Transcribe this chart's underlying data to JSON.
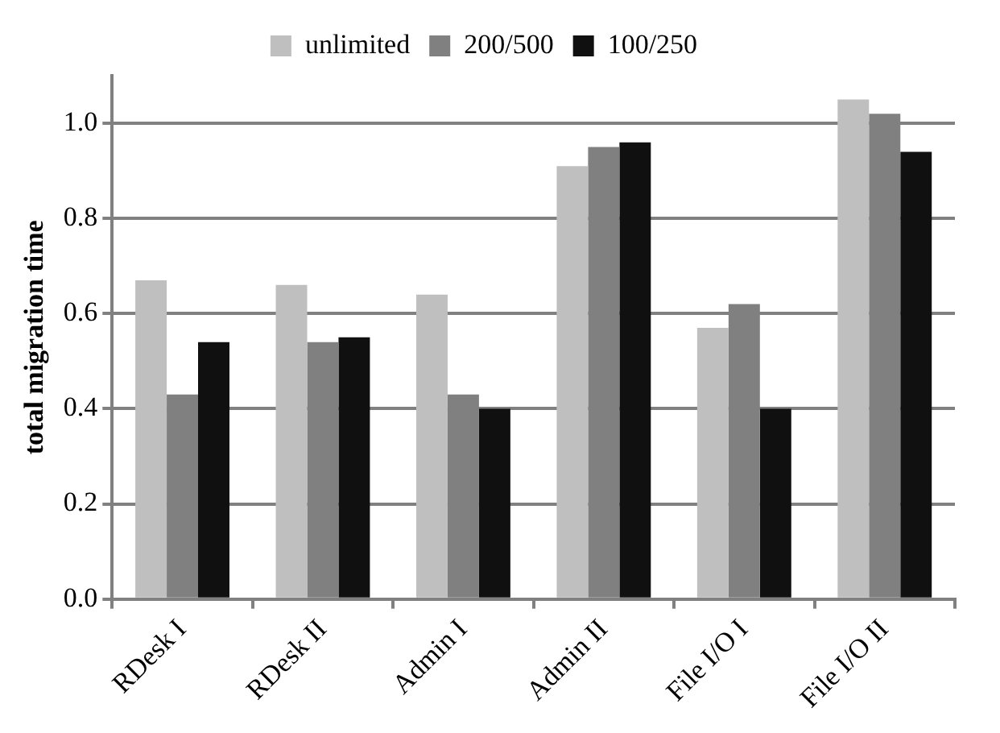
{
  "chart_data": {
    "type": "bar",
    "ylabel": "total migration time",
    "categories": [
      "RDesk I",
      "RDesk II",
      "Admin I",
      "Admin II",
      "File I/O I",
      "File I/O II"
    ],
    "series": [
      {
        "name": "unlimited",
        "color": "#bfbfbf",
        "values": [
          0.67,
          0.66,
          0.64,
          0.91,
          0.57,
          1.05
        ]
      },
      {
        "name": "200/500",
        "color": "#808080",
        "values": [
          0.43,
          0.54,
          0.43,
          0.95,
          0.62,
          1.02
        ]
      },
      {
        "name": "100/250",
        "color": "#101010",
        "values": [
          0.54,
          0.55,
          0.4,
          0.96,
          0.4,
          0.94
        ]
      }
    ],
    "ylim": [
      0,
      1.1
    ],
    "yticks": [
      {
        "value": 0,
        "label": "0.0"
      },
      {
        "value": 0.2,
        "label": "0.2"
      },
      {
        "value": 0.4,
        "label": "0.4"
      },
      {
        "value": 0.6,
        "label": "0.6"
      },
      {
        "value": 0.8,
        "label": "0.8"
      },
      {
        "value": 1,
        "label": "1.0"
      }
    ],
    "grid": "y",
    "legend": "top"
  }
}
